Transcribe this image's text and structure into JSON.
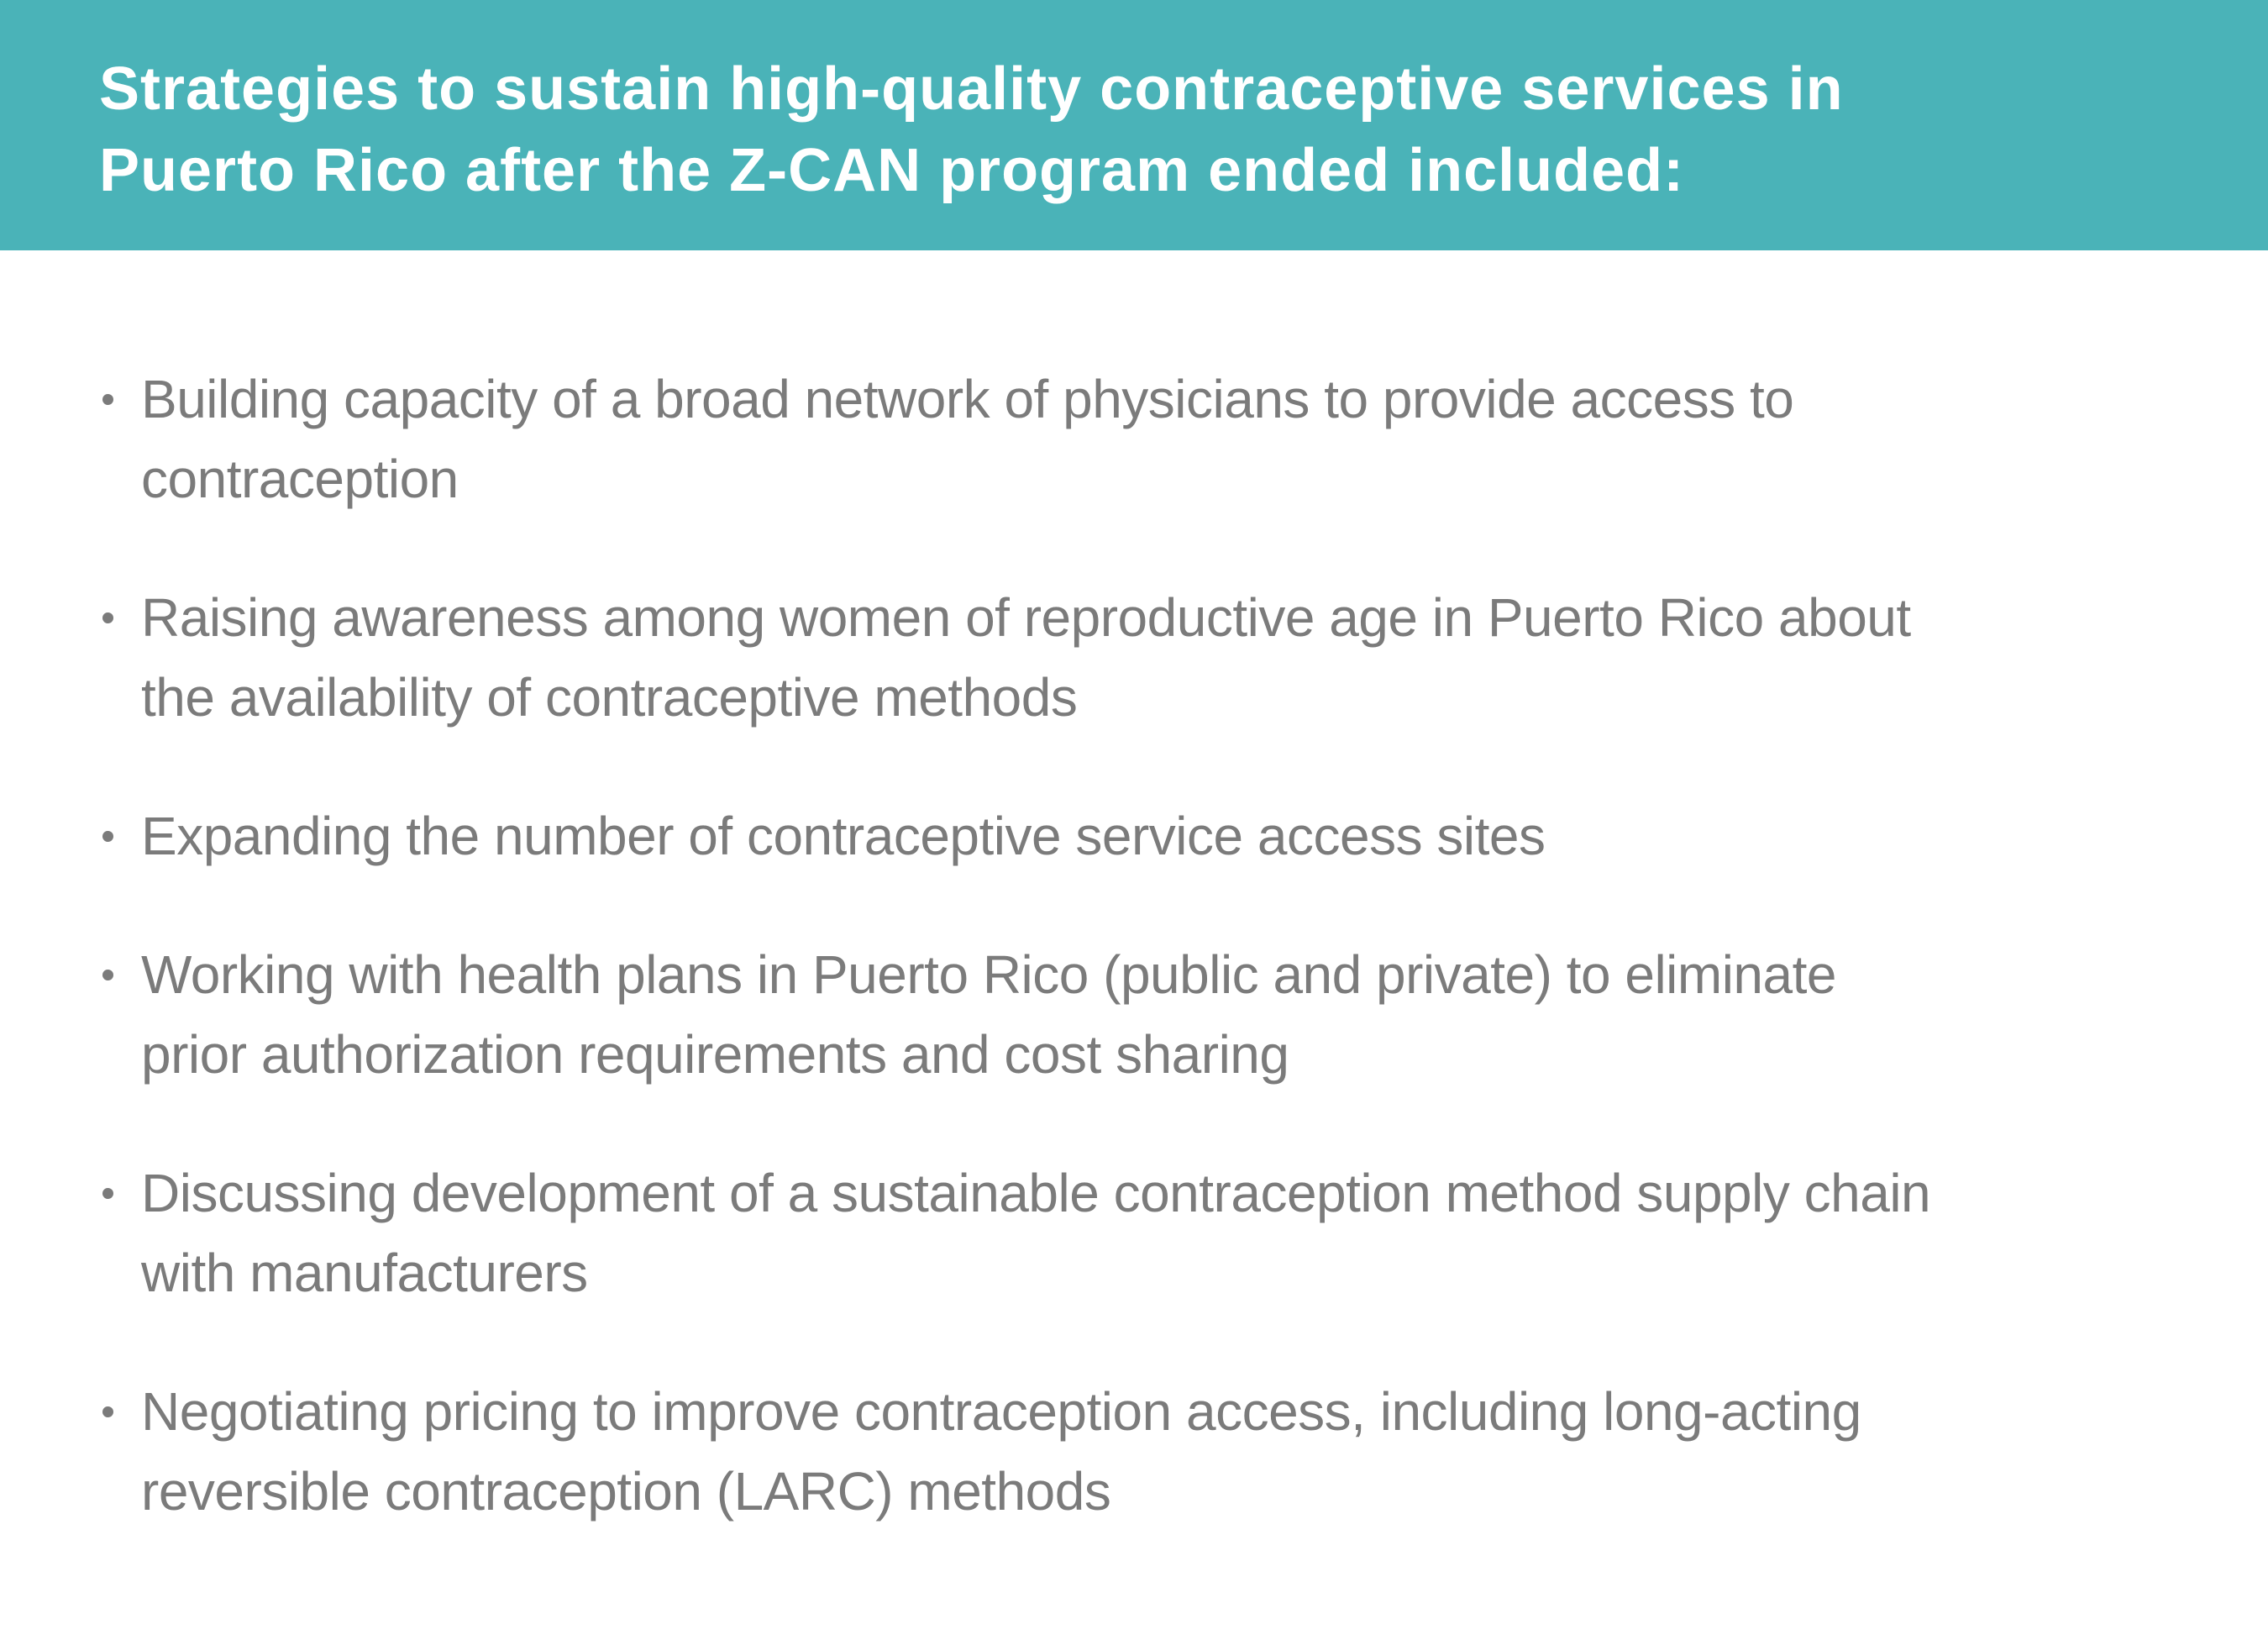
{
  "header": {
    "background": "#4ab3b8",
    "text_color": "#ffffff",
    "title": {
      "line1": "Strategies to sustain high-quality contraceptive services in",
      "line2": "Puerto Rico after the Z-CAN program ended included:"
    }
  },
  "content": {
    "background": "#ffffff",
    "text_color": "#7b7b7b",
    "bullets": [
      {
        "lines": [
          "Building capacity of a broad network of physicians to provide access to",
          "contraception"
        ]
      },
      {
        "lines": [
          "Raising awareness among women of reproductive age in Puerto Rico about",
          "the availability of contraceptive methods"
        ]
      },
      {
        "lines": [
          "Expanding the number of contraceptive service access sites"
        ]
      },
      {
        "lines": [
          "Working with health plans in Puerto Rico (public and private) to eliminate",
          "prior authorization requirements and cost sharing"
        ]
      },
      {
        "lines": [
          "Discussing development of a sustainable contraception method supply chain",
          "with manufacturers"
        ]
      },
      {
        "lines": [
          "Negotiating pricing to improve contraception access, including long-acting",
          "reversible contraception (LARC) methods"
        ]
      }
    ]
  }
}
